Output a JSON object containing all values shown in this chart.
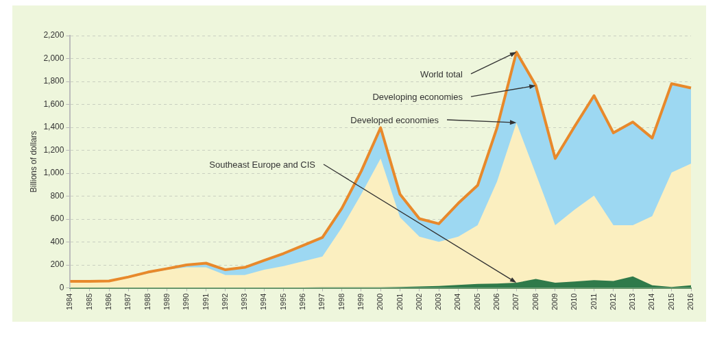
{
  "chart_data": {
    "type": "area",
    "ylabel": "Billions of dollars",
    "grid": "y",
    "categories": [
      "1984",
      "1985",
      "1986",
      "1987",
      "1988",
      "1989",
      "1990",
      "1991",
      "1992",
      "1993",
      "1994",
      "1995",
      "1996",
      "1997",
      "1998",
      "1999",
      "2000",
      "2001",
      "2002",
      "2003",
      "2004",
      "2005",
      "2006",
      "2007",
      "2008",
      "2009",
      "2010",
      "2011",
      "2012",
      "2013",
      "2014",
      "2015",
      "2016"
    ],
    "series": [
      {
        "color": "#9dd8f2",
        "values": [
          57,
          57,
          60,
          95,
          137,
          168,
          200,
          215,
          158,
          179,
          240,
          300,
          370,
          440,
          693,
          1017,
          1397,
          816,
          603,
          559,
          737,
          894,
          1397,
          2056,
          1765,
          1128,
          1408,
          1676,
          1352,
          1446,
          1307,
          1781,
          1743
        ]
      },
      {
        "color": "#fbefc0",
        "values": [
          53,
          53,
          55,
          85,
          126,
          158,
          179,
          179,
          112,
          112,
          158,
          190,
          232,
          274,
          525,
          816,
          1128,
          615,
          447,
          402,
          447,
          547,
          927,
          1441,
          994,
          547,
          682,
          804,
          547,
          547,
          626,
          1006,
          1084
        ]
      },
      {
        "color": "#2f7a4a",
        "values": [
          3,
          3,
          3,
          3,
          3,
          3,
          3,
          3,
          3,
          3,
          3,
          3,
          3,
          5,
          5,
          5,
          5,
          8,
          12,
          16,
          25,
          34,
          38,
          45,
          78,
          45,
          55,
          67,
          60,
          100,
          22,
          7,
          22
        ]
      },
      {
        "type": "line",
        "color": "#e8892b",
        "values": [
          57,
          57,
          60,
          95,
          137,
          168,
          200,
          215,
          158,
          179,
          240,
          300,
          370,
          440,
          693,
          1017,
          1397,
          816,
          603,
          559,
          737,
          894,
          1397,
          2056,
          1765,
          1128,
          1408,
          1676,
          1352,
          1446,
          1307,
          1781,
          1743
        ]
      }
    ],
    "annotations": [
      {
        "text": "World total",
        "x": "2007",
        "y": 2056
      },
      {
        "text": "Developing economies",
        "x": "2008",
        "y": 1765
      },
      {
        "text": "Developed economies",
        "x": "2007",
        "y": 1441
      },
      {
        "text": "Southeast Europe and CIS",
        "x": "2007",
        "y": 45
      }
    ],
    "ylim": [
      0,
      2200
    ],
    "yticks": [
      0,
      200,
      400,
      600,
      800,
      {
        "value": 1000,
        "label": "1,000"
      },
      {
        "value": 1200,
        "label": "1,200"
      },
      {
        "value": 1400,
        "label": "1,400"
      },
      {
        "value": 1600,
        "label": "1,600"
      },
      {
        "value": 1800,
        "label": "1,800"
      },
      {
        "value": 2000,
        "label": "2,000"
      },
      {
        "value": 2200,
        "label": "2,200"
      }
    ]
  }
}
